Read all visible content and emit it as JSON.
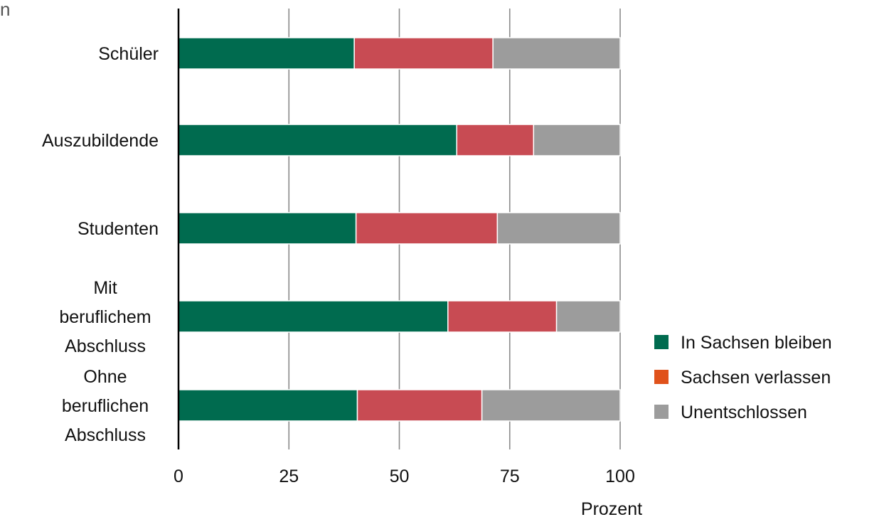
{
  "corner_text": "n",
  "chart_data": {
    "type": "bar",
    "orientation": "horizontal",
    "stacked": true,
    "categories": [
      [
        "Schüler"
      ],
      [
        "Auszubildende"
      ],
      [
        "Studenten"
      ],
      [
        "Mit",
        "beruflichem",
        "Abschluss"
      ],
      [
        "Ohne",
        "beruflichen",
        "Abschluss"
      ]
    ],
    "series": [
      {
        "name": "In Sachsen bleiben",
        "color": "#006b4f",
        "values": [
          39.8,
          63.0,
          40.2,
          61.0,
          40.5
        ]
      },
      {
        "name": "Sachsen verlassen",
        "color": "#c84b53",
        "values": [
          31.4,
          17.4,
          32.0,
          24.6,
          28.2
        ]
      },
      {
        "name": "Unentschlossen",
        "color": "#9c9c9c",
        "values": [
          28.8,
          19.6,
          27.8,
          14.4,
          31.3
        ]
      }
    ],
    "legend_swatch_colors": [
      "#006b4f",
      "#e0521b",
      "#9c9c9c"
    ],
    "xlim": [
      0,
      100
    ],
    "xticks": [
      0,
      25,
      50,
      75,
      100
    ],
    "xlabel": "Prozent",
    "grid": true,
    "legend_position": "bottom-right"
  }
}
